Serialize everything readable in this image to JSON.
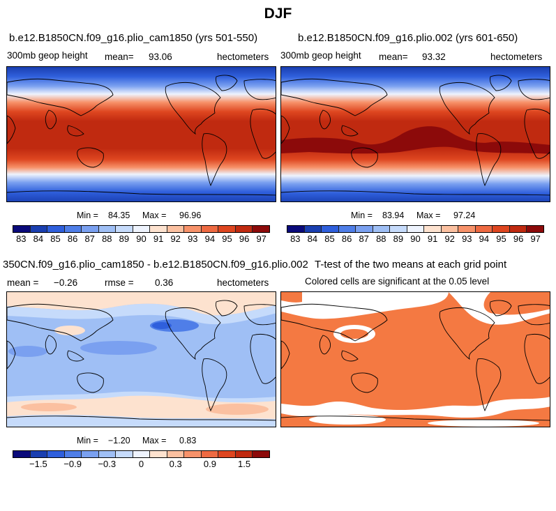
{
  "title": "DJF",
  "panels": {
    "p1": {
      "title": "b.e12.B1850CN.f09_g16.plio_cam1850 (yrs 501-550)",
      "variable": "300mb geop height",
      "mean_label": "mean=",
      "mean_value": "93.06",
      "units": "hectometers",
      "min_label": "Min =",
      "min_value": "84.35",
      "max_label": "Max =",
      "max_value": "96.96"
    },
    "p2": {
      "title": "b.e12.B1850CN.f09_g16.plio.002 (yrs 601-650)",
      "variable": "300mb geop height",
      "mean_label": "mean=",
      "mean_value": "93.32",
      "units": "hectometers",
      "min_label": "Min =",
      "min_value": "83.94",
      "max_label": "Max =",
      "max_value": "97.24"
    },
    "p3": {
      "title": "350CN.f09_g16.plio_cam1850 - b.e12.B1850CN.f09_g16.plio.002",
      "mean_label": "mean =",
      "mean_value": "−0.26",
      "rmse_label": "rmse =",
      "rmse_value": "0.36",
      "units": "hectometers",
      "min_label": "Min =",
      "min_value": "−1.20",
      "max_label": "Max =",
      "max_value": "0.83"
    },
    "p4": {
      "title": "T-test of the two means at each grid point",
      "subtitle": "Colored cells are significant at the 0.05 level"
    }
  },
  "colorbar_abs": {
    "colors": [
      "#0a0a7a",
      "#1a3fb0",
      "#2f5fdc",
      "#4f7ee8",
      "#7aa0f0",
      "#9fbff5",
      "#c6dbfb",
      "#eef3fd",
      "#fde2cf",
      "#fbc0a0",
      "#f7926a",
      "#ee6a42",
      "#de4620",
      "#c02a10",
      "#8c0a0a"
    ],
    "labels": [
      "83",
      "84",
      "85",
      "86",
      "87",
      "88",
      "89",
      "90",
      "91",
      "92",
      "93",
      "94",
      "95",
      "96",
      "97"
    ]
  },
  "colorbar_diff": {
    "colors": [
      "#0a0a7a",
      "#1a3fb0",
      "#2f5fdc",
      "#4f7ee8",
      "#7aa0f0",
      "#9fbff5",
      "#c6dbfb",
      "#eef3fd",
      "#fde2cf",
      "#fbc0a0",
      "#f7926a",
      "#ee6a42",
      "#de4620",
      "#c02a10",
      "#8c0a0a"
    ],
    "labels": [
      "−1.5",
      "−0.9",
      "−0.3",
      "0",
      "0.3",
      "0.9",
      "1.5"
    ]
  },
  "chart_data": [
    {
      "type": "heatmap",
      "title": "b.e12.B1850CN.f09_g16.plio_cam1850 (yrs 501-550)",
      "variable": "300mb geop height",
      "units": "hectometers",
      "mean": 93.06,
      "min": 84.35,
      "max": 96.96,
      "colorbar_levels": [
        83,
        84,
        85,
        86,
        87,
        88,
        89,
        90,
        91,
        92,
        93,
        94,
        95,
        96,
        97
      ]
    },
    {
      "type": "heatmap",
      "title": "b.e12.B1850CN.f09_g16.plio.002 (yrs 601-650)",
      "variable": "300mb geop height",
      "units": "hectometers",
      "mean": 93.32,
      "min": 83.94,
      "max": 97.24,
      "colorbar_levels": [
        83,
        84,
        85,
        86,
        87,
        88,
        89,
        90,
        91,
        92,
        93,
        94,
        95,
        96,
        97
      ]
    },
    {
      "type": "heatmap",
      "title": "350CN.f09_g16.plio_cam1850 - b.e12.B1850CN.f09_g16.plio.002",
      "units": "hectometers",
      "mean": -0.26,
      "rmse": 0.36,
      "min": -1.2,
      "max": 0.83,
      "colorbar_labels": [
        -1.5,
        -0.9,
        -0.3,
        0,
        0.3,
        0.9,
        1.5
      ]
    },
    {
      "type": "heatmap",
      "title": "T-test of the two means at each grid point",
      "subtitle": "Colored cells are significant at the 0.05 level",
      "significance_level": 0.05
    }
  ]
}
